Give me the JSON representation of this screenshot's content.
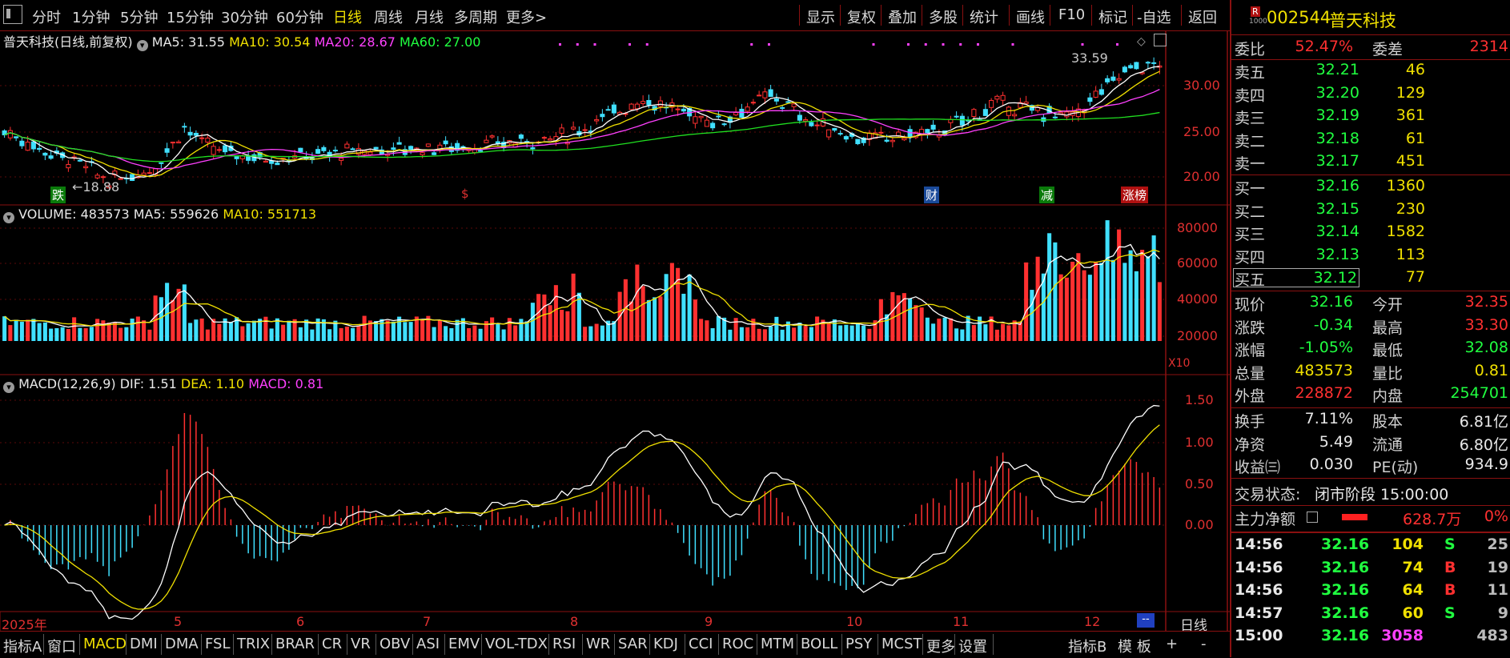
{
  "toolbar": {
    "menu_icon": "menu-icon",
    "periods": [
      "分时",
      "1分钟",
      "5分钟",
      "15分钟",
      "30分钟",
      "60分钟",
      "日线",
      "周线",
      "月线",
      "多周期",
      "更多>"
    ],
    "active_period": "日线",
    "right_items": [
      "显示",
      "复权",
      "叠加",
      "多股",
      "统计",
      "画线",
      "F10",
      "标记",
      "-自选",
      "返回"
    ]
  },
  "stock": {
    "r_badge": "R",
    "r_sub": "1000",
    "code": "002544",
    "name": "普天科技"
  },
  "price_pane": {
    "title": "普天科技(日线,前复权)",
    "ma5": "MA5: 31.55",
    "ma10": "MA10: 30.54",
    "ma20": "MA20: 28.67",
    "ma60": "MA60: 27.00",
    "high_label": "33.59",
    "low_label": "←18.88",
    "y_ticks": [
      "30.00",
      "25.00",
      "20.00"
    ],
    "badges": [
      "跌",
      "$",
      "财",
      "减",
      "涨榜"
    ]
  },
  "volume_pane": {
    "title": "VOLUME: 483573",
    "ma5": "MA5: 559626",
    "ma10": "MA10: 551713",
    "y_ticks": [
      "80000",
      "60000",
      "40000",
      "20000"
    ],
    "unit": "X10"
  },
  "macd_pane": {
    "title": "MACD(12,26,9)",
    "dif": "DIF: 1.51",
    "dea": "DEA: 1.10",
    "macd": "MACD: 0.81",
    "y_ticks": [
      "1.50",
      "1.00",
      "0.50",
      "0.00"
    ]
  },
  "x_axis": {
    "labels": [
      "2025年",
      "5",
      "6",
      "7",
      "8",
      "9",
      "10",
      "11",
      "12"
    ],
    "period_label": "日线"
  },
  "quote": {
    "weibi_label": "委比",
    "weibi": "52.47%",
    "weicha_label": "委差",
    "weicha": "2314",
    "asks": [
      {
        "label": "卖五",
        "price": "32.21",
        "vol": "46"
      },
      {
        "label": "卖四",
        "price": "32.20",
        "vol": "129"
      },
      {
        "label": "卖三",
        "price": "32.19",
        "vol": "361"
      },
      {
        "label": "卖二",
        "price": "32.18",
        "vol": "61"
      },
      {
        "label": "卖一",
        "price": "32.17",
        "vol": "451"
      }
    ],
    "bids": [
      {
        "label": "买一",
        "price": "32.16",
        "vol": "1360"
      },
      {
        "label": "买二",
        "price": "32.15",
        "vol": "230"
      },
      {
        "label": "买三",
        "price": "32.14",
        "vol": "1582"
      },
      {
        "label": "买四",
        "price": "32.13",
        "vol": "113"
      },
      {
        "label": "买五",
        "price": "32.12",
        "vol": "77"
      }
    ],
    "stats": [
      {
        "l1": "现价",
        "v1": "32.16",
        "c1": "green",
        "l2": "今开",
        "v2": "32.35",
        "c2": "red"
      },
      {
        "l1": "涨跌",
        "v1": "-0.34",
        "c1": "green",
        "l2": "最高",
        "v2": "33.30",
        "c2": "red"
      },
      {
        "l1": "涨幅",
        "v1": "-1.05%",
        "c1": "green",
        "l2": "最低",
        "v2": "32.08",
        "c2": "green"
      },
      {
        "l1": "总量",
        "v1": "483573",
        "c1": "yellow",
        "l2": "量比",
        "v2": "0.81",
        "c2": "yellow"
      },
      {
        "l1": "外盘",
        "v1": "228872",
        "c1": "red",
        "l2": "内盘",
        "v2": "254701",
        "c2": "green"
      }
    ],
    "stats2": [
      {
        "l1": "换手",
        "v1": "7.11%",
        "l2": "股本",
        "v2": "6.81亿"
      },
      {
        "l1": "净资",
        "v1": "5.49",
        "l2": "流通",
        "v2": "6.80亿"
      },
      {
        "l1": "收益㈢",
        "v1": "0.030",
        "l2": "PE(动)",
        "v2": "934.9"
      }
    ],
    "status_label": "交易状态:",
    "status": "闭市阶段 15:00:00",
    "mainflow_label": "主力净额",
    "mainflow": "628.7万",
    "mainflow_pct": "0%",
    "ticks": [
      {
        "time": "14:56",
        "price": "32.16",
        "vol": "104",
        "side": "S",
        "num": "25"
      },
      {
        "time": "14:56",
        "price": "32.16",
        "vol": "74",
        "side": "B",
        "num": "19"
      },
      {
        "time": "14:56",
        "price": "32.16",
        "vol": "64",
        "side": "B",
        "num": "11"
      },
      {
        "time": "14:57",
        "price": "32.16",
        "vol": "60",
        "side": "S",
        "num": "9"
      },
      {
        "time": "15:00",
        "price": "32.16",
        "vol": "3058",
        "side": "",
        "num": "483"
      }
    ]
  },
  "bottombar": {
    "items": [
      "指标A",
      "窗口",
      "MACD",
      "DMI",
      "DMA",
      "FSL",
      "TRIX",
      "BRAR",
      "CR",
      "VR",
      "OBV",
      "ASI",
      "EMV",
      "VOL-TDX",
      "RSI",
      "WR",
      "SAR",
      "KDJ",
      "CCI",
      "ROC",
      "MTM",
      "BOLL",
      "PSY",
      "MCST",
      "更多",
      "设置"
    ],
    "active": "MACD",
    "right_items": [
      "指标B",
      "模 板",
      "+",
      "-"
    ]
  },
  "colors": {
    "up": "#ff3030",
    "down": "#40e0ff",
    "ma5": "#ffffff",
    "ma10": "#f0e000",
    "ma20": "#ff40ff",
    "ma60": "#20e020",
    "border": "#8a1010"
  }
}
